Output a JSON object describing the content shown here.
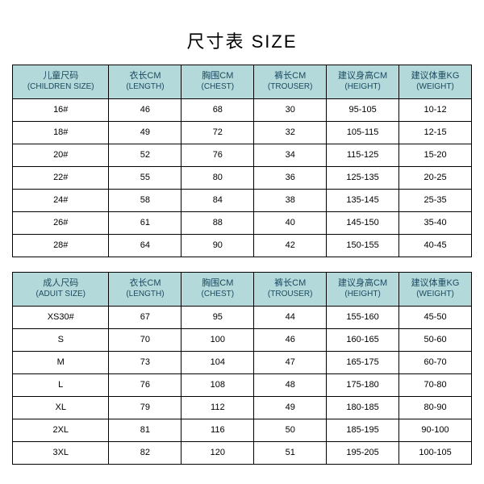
{
  "title": "尺寸表 SIZE",
  "header_bg": "#b4d9da",
  "border_color": "#000000",
  "children": {
    "columns": [
      {
        "cn": "儿童尺码",
        "en": "(CHILDREN SIZE)"
      },
      {
        "cn": "衣长CM",
        "en": "(LENGTH)"
      },
      {
        "cn": "胸围CM",
        "en": "(CHEST)"
      },
      {
        "cn": "裤长CM",
        "en": "(TROUSER)"
      },
      {
        "cn": "建议身高CM",
        "en": "(HEIGHT)"
      },
      {
        "cn": "建议体重KG",
        "en": "(WEIGHT)"
      }
    ],
    "rows": [
      [
        "16#",
        "46",
        "68",
        "30",
        "95-105",
        "10-12"
      ],
      [
        "18#",
        "49",
        "72",
        "32",
        "105-115",
        "12-15"
      ],
      [
        "20#",
        "52",
        "76",
        "34",
        "115-125",
        "15-20"
      ],
      [
        "22#",
        "55",
        "80",
        "36",
        "125-135",
        "20-25"
      ],
      [
        "24#",
        "58",
        "84",
        "38",
        "135-145",
        "25-35"
      ],
      [
        "26#",
        "61",
        "88",
        "40",
        "145-150",
        "35-40"
      ],
      [
        "28#",
        "64",
        "90",
        "42",
        "150-155",
        "40-45"
      ]
    ]
  },
  "adult": {
    "columns": [
      {
        "cn": "成人尺码",
        "en": "(ADUIT SIZE)"
      },
      {
        "cn": "衣长CM",
        "en": "(LENGTH)"
      },
      {
        "cn": "胸围CM",
        "en": "(CHEST)"
      },
      {
        "cn": "裤长CM",
        "en": "(TROUSER)"
      },
      {
        "cn": "建议身高CM",
        "en": "(HEIGHT)"
      },
      {
        "cn": "建议体重KG",
        "en": "(WEIGHT)"
      }
    ],
    "rows": [
      [
        "XS30#",
        "67",
        "95",
        "44",
        "155-160",
        "45-50"
      ],
      [
        "S",
        "70",
        "100",
        "46",
        "160-165",
        "50-60"
      ],
      [
        "M",
        "73",
        "104",
        "47",
        "165-175",
        "60-70"
      ],
      [
        "L",
        "76",
        "108",
        "48",
        "175-180",
        "70-80"
      ],
      [
        "XL",
        "79",
        "112",
        "49",
        "180-185",
        "80-90"
      ],
      [
        "2XL",
        "81",
        "116",
        "50",
        "185-195",
        "90-100"
      ],
      [
        "3XL",
        "82",
        "120",
        "51",
        "195-205",
        "100-105"
      ]
    ]
  }
}
